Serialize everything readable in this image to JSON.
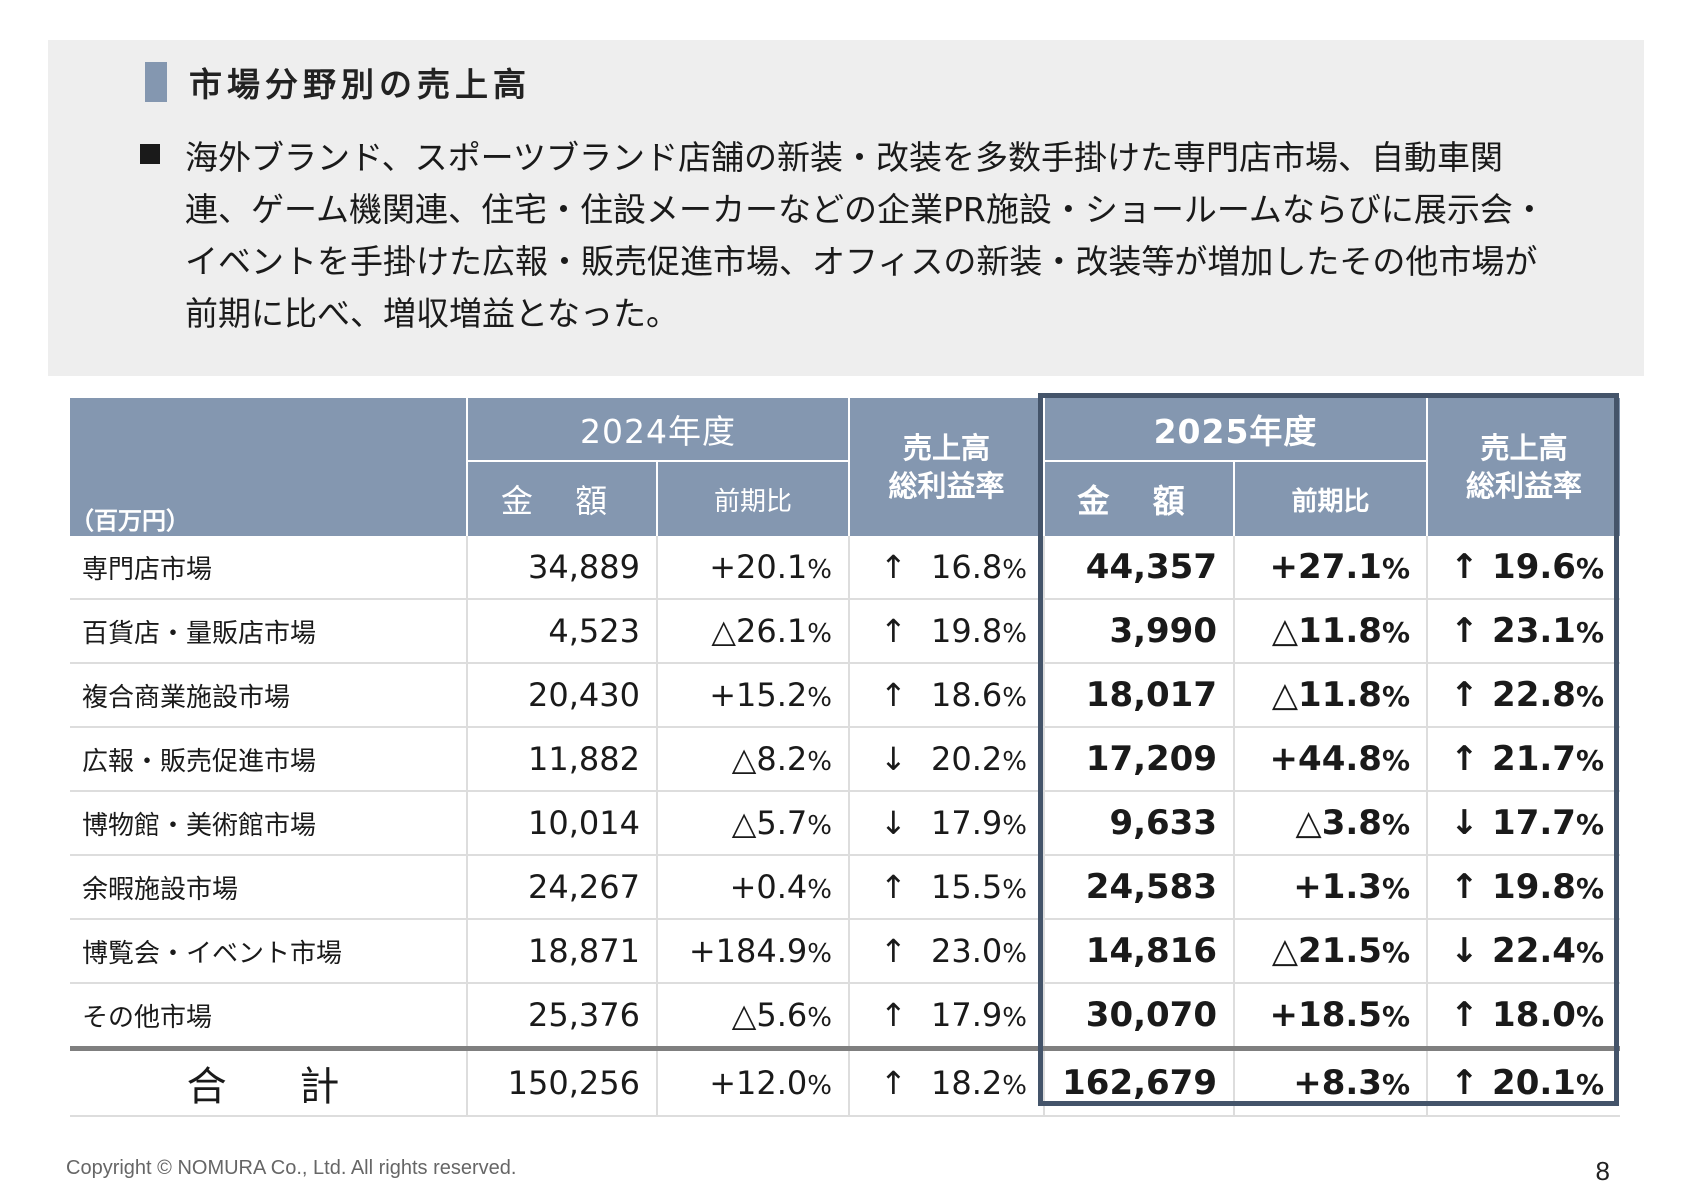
{
  "heading": "市場分野別の売上高",
  "bullet_lines": [
    "海外ブランド、スポーツブランド店舗の新装・改装を多数手掛けた専門店市場、自動車関",
    "連、ゲーム機関連、住宅・住設メーカーなどの企業PR施設・ショールームならびに展示会・",
    "イベントを手掛けた広報・販売促進市場、オフィスの新装・改装等が増加したその他市場が",
    "前期に比べ、増収増益となった。"
  ],
  "table": {
    "unit": "（百万円）",
    "year_2024": "2024年度",
    "year_2025": "2025年度",
    "col_amount": "金 額",
    "col_yoy": "前期比",
    "col_rate_line1": "売上高",
    "col_rate_line2": "総利益率",
    "rows": [
      {
        "name": "専門店市場",
        "a24": "34,889",
        "y24": "+20.1",
        "d24": "↑",
        "r24": "16.8",
        "a25": "44,357",
        "y25": "+27.1",
        "d25": "↑",
        "r25": "19.6"
      },
      {
        "name": "百貨店・量販店市場",
        "a24": "4,523",
        "y24": "△26.1",
        "d24": "↑",
        "r24": "19.8",
        "a25": "3,990",
        "y25": "△11.8",
        "d25": "↑",
        "r25": "23.1"
      },
      {
        "name": "複合商業施設市場",
        "a24": "20,430",
        "y24": "+15.2",
        "d24": "↑",
        "r24": "18.6",
        "a25": "18,017",
        "y25": "△11.8",
        "d25": "↑",
        "r25": "22.8"
      },
      {
        "name": "広報・販売促進市場",
        "a24": "11,882",
        "y24": "△8.2",
        "d24": "↓",
        "r24": "20.2",
        "a25": "17,209",
        "y25": "+44.8",
        "d25": "↑",
        "r25": "21.7"
      },
      {
        "name": "博物館・美術館市場",
        "a24": "10,014",
        "y24": "△5.7",
        "d24": "↓",
        "r24": "17.9",
        "a25": "9,633",
        "y25": "△3.8",
        "d25": "↓",
        "r25": "17.7"
      },
      {
        "name": "余暇施設市場",
        "a24": "24,267",
        "y24": "+0.4",
        "d24": "↑",
        "r24": "15.5",
        "a25": "24,583",
        "y25": "+1.3",
        "d25": "↑",
        "r25": "19.8"
      },
      {
        "name": "博覧会・イベント市場",
        "a24": "18,871",
        "y24": "+184.9",
        "d24": "↑",
        "r24": "23.0",
        "a25": "14,816",
        "y25": "△21.5",
        "d25": "↓",
        "r25": "22.4"
      },
      {
        "name": "その他市場",
        "a24": "25,376",
        "y24": "△5.6",
        "d24": "↑",
        "r24": "17.9",
        "a25": "30,070",
        "y25": "+18.5",
        "d25": "↑",
        "r25": "18.0"
      }
    ],
    "total": {
      "name": "合 計",
      "a24": "150,256",
      "y24": "+12.0",
      "d24": "↑",
      "r24": "18.2",
      "a25": "162,679",
      "y25": "+8.3",
      "d25": "↑",
      "r25": "20.1"
    },
    "percent_sign": "%"
  },
  "footer": {
    "copyright": "Copyright © NOMURA Co., Ltd. All rights reserved.",
    "page": "8"
  },
  "colors": {
    "header_bg": "#8497b0",
    "panel_bg": "#eeeeee",
    "frame_2025": "#44546a"
  }
}
